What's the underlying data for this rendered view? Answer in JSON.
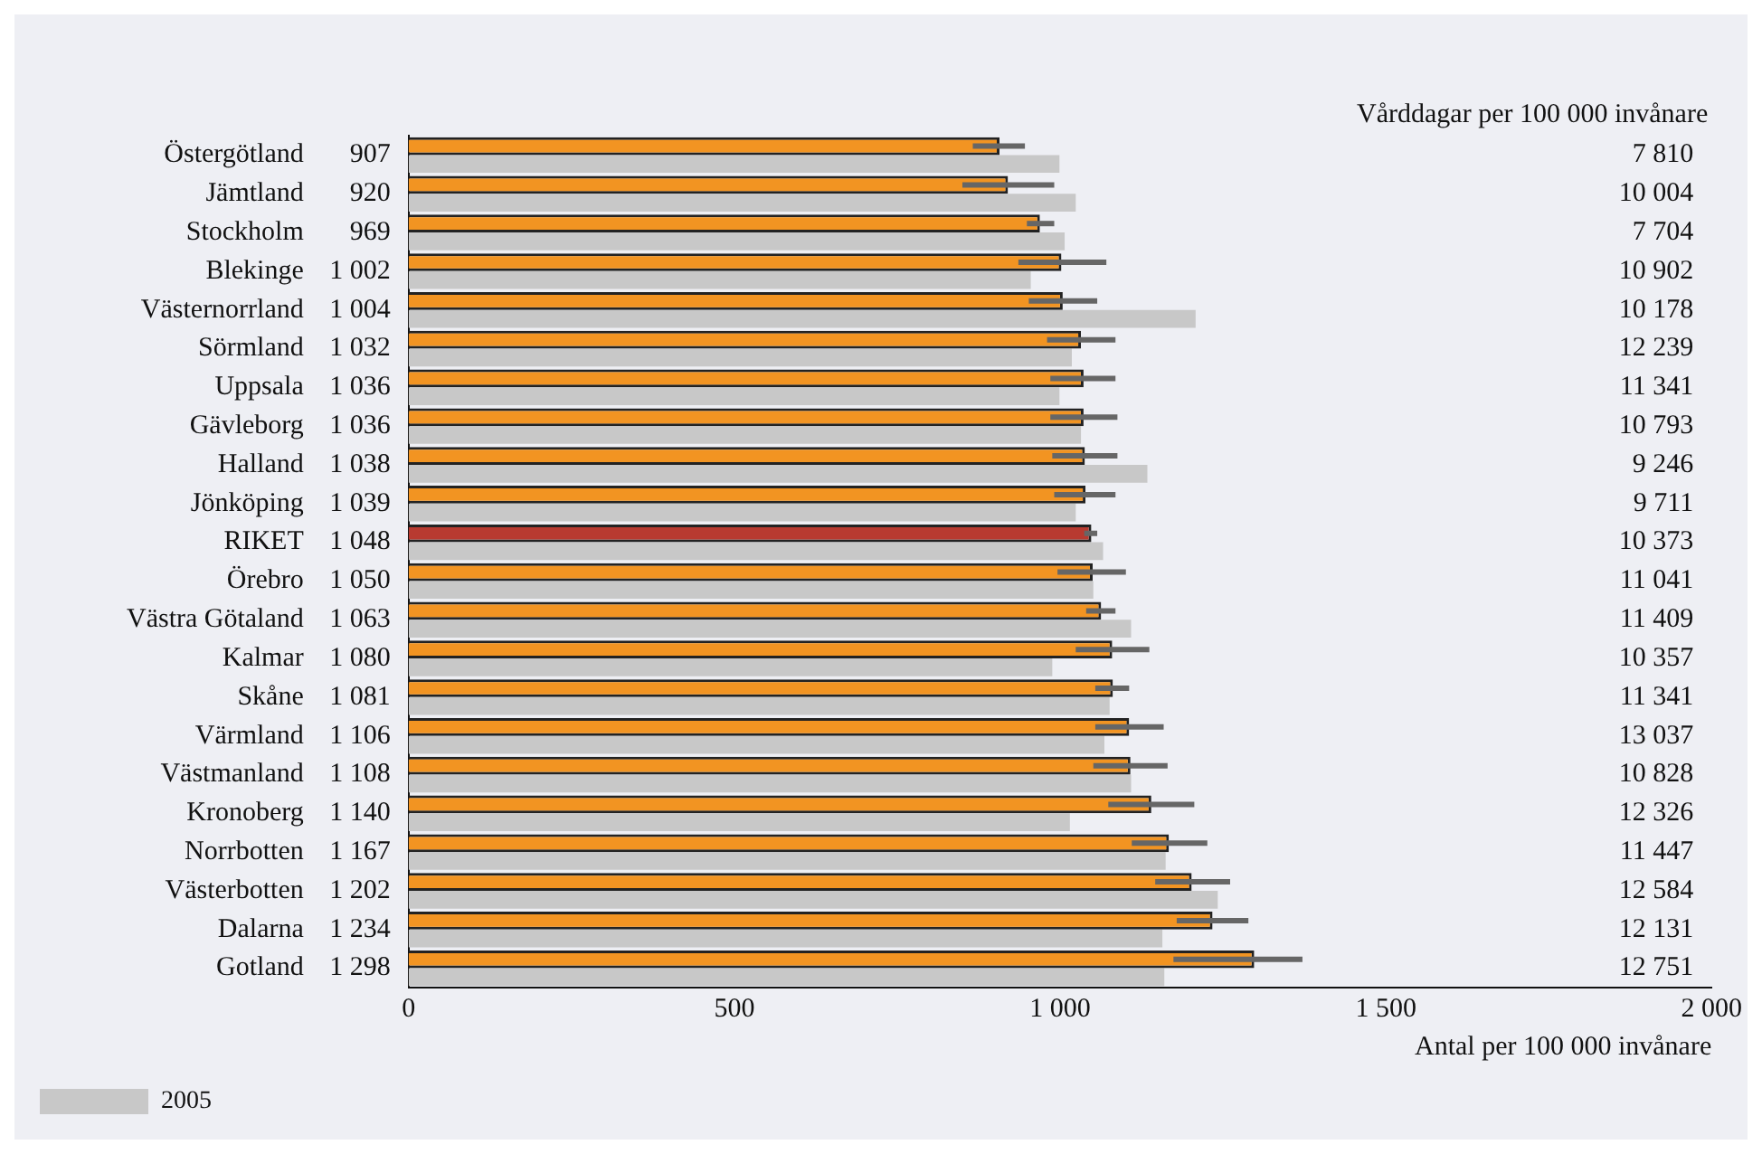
{
  "chart_data": {
    "type": "bar",
    "orientation": "horizontal",
    "xlabel": "Antal per 100 000 invånare",
    "categories": [
      "Östergötland",
      "Jämtland",
      "Stockholm",
      "Blekinge",
      "Västernorrland",
      "Sörmland",
      "Uppsala",
      "Gävleborg",
      "Halland",
      "Jönköping",
      "RIKET",
      "Örebro",
      "Västra Götaland",
      "Kalmar",
      "Skåne",
      "Värmland",
      "Västmanland",
      "Kronoberg",
      "Norrbotten",
      "Västerbotten",
      "Dalarna",
      "Gotland"
    ],
    "series": [
      {
        "colors": [
          "#f29422",
          "#f29422",
          "#f29422",
          "#f29422",
          "#f29422",
          "#f29422",
          "#f29422",
          "#f29422",
          "#f29422",
          "#f29422",
          "#b83a30",
          "#f29422",
          "#f29422",
          "#f29422",
          "#f29422",
          "#f29422",
          "#f29422",
          "#f29422",
          "#f29422",
          "#f29422",
          "#f29422",
          "#f29422"
        ],
        "values": [
          907,
          920,
          969,
          1002,
          1004,
          1032,
          1036,
          1036,
          1038,
          1039,
          1048,
          1050,
          1063,
          1080,
          1081,
          1106,
          1108,
          1140,
          1167,
          1202,
          1234,
          1298
        ],
        "value_labels": [
          "907",
          "920",
          "969",
          "1 002",
          "1 004",
          "1 032",
          "1 036",
          "1 036",
          "1 038",
          "1 039",
          "1 048",
          "1 050",
          "1 063",
          "1 080",
          "1 081",
          "1 106",
          "1 108",
          "1 140",
          "1 167",
          "1 202",
          "1 234",
          "1 298"
        ],
        "errors": [
          [
            866,
            946
          ],
          [
            850,
            991
          ],
          [
            949,
            991
          ],
          [
            936,
            1071
          ],
          [
            952,
            1057
          ],
          [
            980,
            1085
          ],
          [
            985,
            1085
          ],
          [
            985,
            1088
          ],
          [
            988,
            1088
          ],
          [
            991,
            1085
          ],
          [
            1037,
            1057
          ],
          [
            996,
            1101
          ],
          [
            1040,
            1085
          ],
          [
            1024,
            1137
          ],
          [
            1054,
            1106
          ],
          [
            1054,
            1159
          ],
          [
            1051,
            1165
          ],
          [
            1074,
            1206
          ],
          [
            1110,
            1226
          ],
          [
            1146,
            1261
          ],
          [
            1179,
            1289
          ],
          [
            1174,
            1372
          ]
        ]
      },
      {
        "name": "2005",
        "color": "#c8c8c8",
        "values": [
          999,
          1024,
          1007,
          955,
          1208,
          1018,
          999,
          1032,
          1134,
          1024,
          1066,
          1051,
          1109,
          988,
          1076,
          1068,
          1109,
          1015,
          1162,
          1242,
          1157,
          1160
        ]
      }
    ],
    "xlim": [
      0,
      2000
    ],
    "xticks": [
      0,
      500,
      {
        "value": 1000,
        "label": "1 000"
      },
      {
        "value": 1500,
        "label": "1 500"
      },
      {
        "value": 2000,
        "label": "2 000"
      }
    ],
    "grid": false,
    "legend": "bottom left",
    "annotations": [
      "Vårddagar per 100 000 invånare",
      "7 810",
      "10 004",
      "7 704",
      "10 902",
      "10 178",
      "12 239",
      "11 341",
      "10 793",
      "9 246",
      "9 711",
      "10 373",
      "11 041",
      "11 409",
      "10 357",
      "11 341",
      "13 037",
      "10 828",
      "12 326",
      "11 447",
      "12 584",
      "12 131",
      "12 751"
    ]
  }
}
